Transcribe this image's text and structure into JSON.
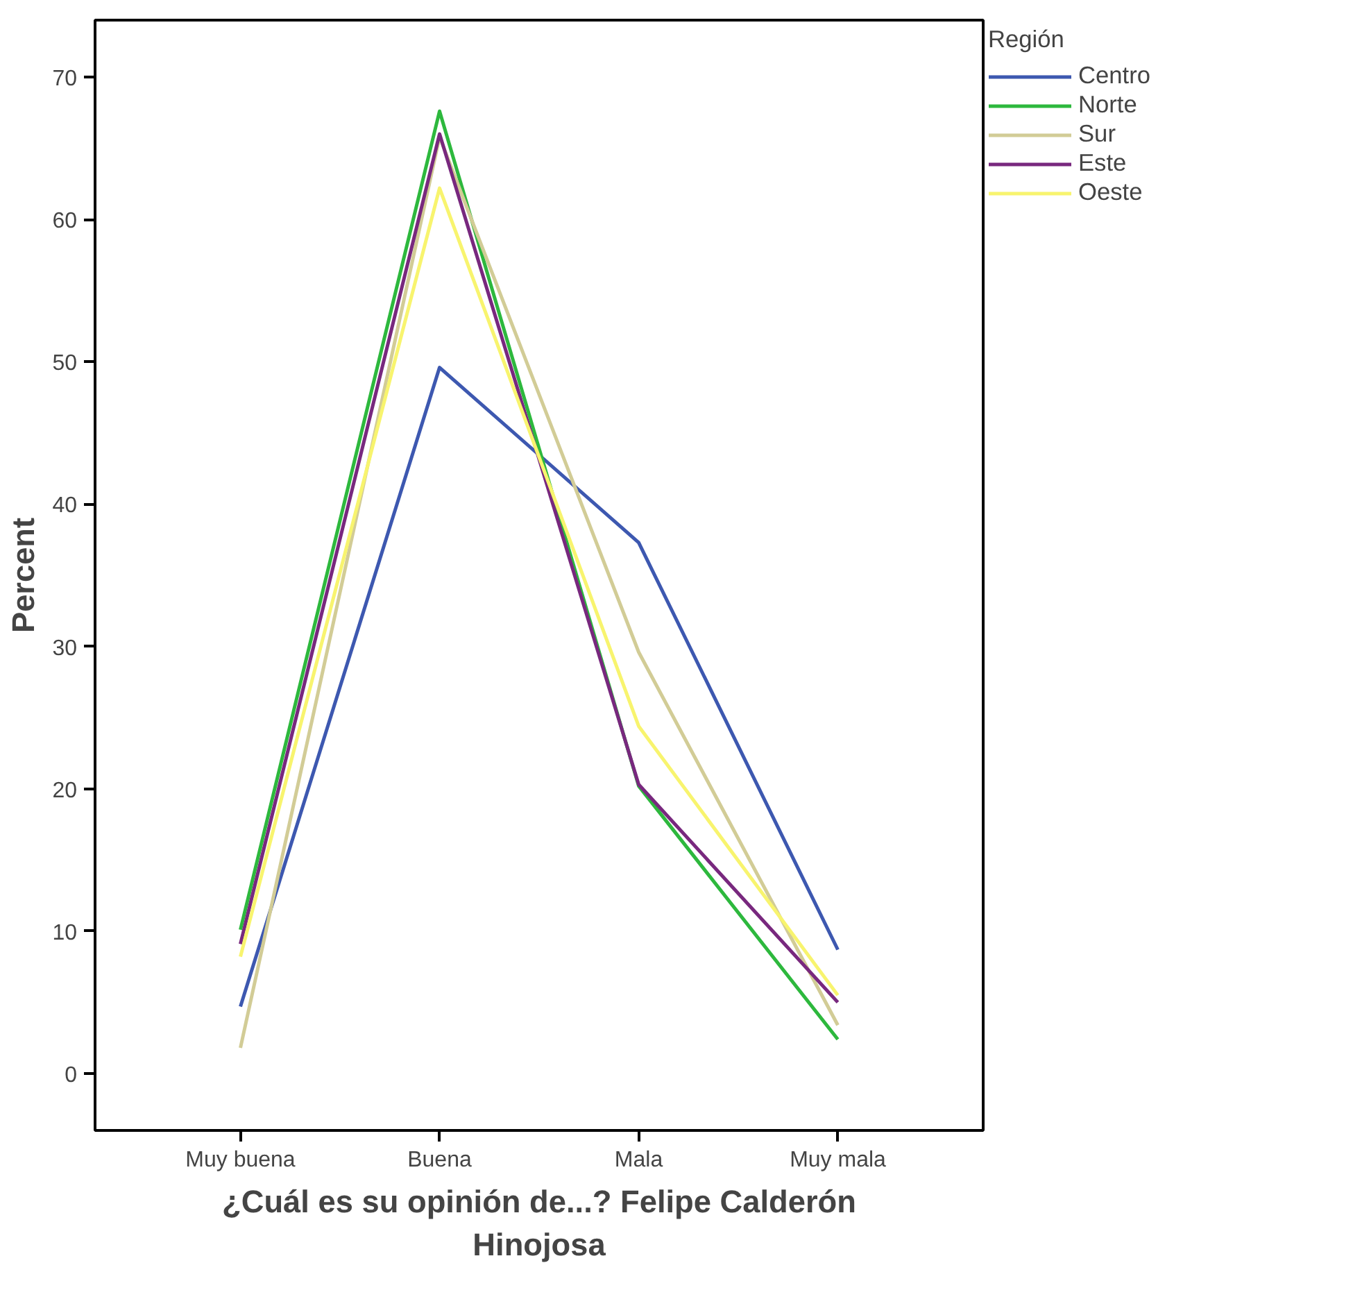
{
  "chart_data": {
    "type": "line",
    "xlabel": "¿Cuál es su opinión de...? Felipe Calderón Hinojosa",
    "ylabel": "Percent",
    "legend_title": "Región",
    "categories": [
      "Muy buena",
      "Buena",
      "Mala",
      "Muy mala"
    ],
    "series": [
      {
        "name": "Centro",
        "color": "#3d58b0",
        "values": [
          4.7,
          49.6,
          37.3,
          8.7
        ]
      },
      {
        "name": "Norte",
        "color": "#2db83d",
        "values": [
          10.1,
          67.6,
          20.2,
          2.4
        ]
      },
      {
        "name": "Sur",
        "color": "#d2cc96",
        "values": [
          1.8,
          65.8,
          29.6,
          3.4
        ]
      },
      {
        "name": "Este",
        "color": "#78287e",
        "values": [
          9.1,
          66.0,
          20.3,
          5.0
        ]
      },
      {
        "name": "Oeste",
        "color": "#f8f46e",
        "values": [
          8.2,
          62.2,
          24.4,
          5.5
        ]
      }
    ],
    "ylim": [
      -4,
      74
    ],
    "yticks": [
      0,
      10,
      20,
      30,
      40,
      50,
      60,
      70
    ],
    "grid": false,
    "legend": "right",
    "marker": "none",
    "line_style": "solid"
  }
}
